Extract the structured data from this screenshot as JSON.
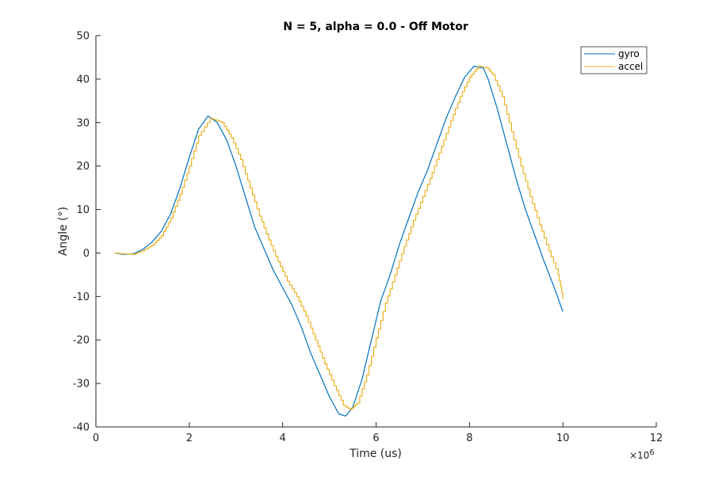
{
  "chart_data": {
    "type": "line",
    "title": "N = 5, alpha = 0.0 - Off Motor",
    "xlabel": "Time (us)",
    "ylabel": "Angle (°)",
    "x_exponent_label": "×10",
    "x_exponent_power": "6",
    "xlim": [
      0,
      12
    ],
    "ylim": [
      -40,
      50
    ],
    "x_unit_multiplier": 1000000,
    "xticks": [
      0,
      2,
      4,
      6,
      8,
      10,
      12
    ],
    "yticks": [
      -40,
      -30,
      -20,
      -10,
      0,
      10,
      20,
      30,
      40,
      50
    ],
    "xtick_labels": [
      "0",
      "2",
      "4",
      "6",
      "8",
      "10",
      "12"
    ],
    "ytick_labels": [
      "-40",
      "-30",
      "-20",
      "-10",
      "0",
      "10",
      "20",
      "30",
      "40",
      "50"
    ],
    "grid": false,
    "legend_position": "top-right",
    "series": [
      {
        "name": "gyro",
        "color": "#0072BD",
        "x": [
          0.4,
          0.6,
          0.8,
          1.0,
          1.2,
          1.4,
          1.6,
          1.8,
          2.0,
          2.2,
          2.4,
          2.6,
          2.8,
          3.0,
          3.2,
          3.4,
          3.6,
          3.8,
          4.0,
          4.2,
          4.4,
          4.6,
          4.8,
          5.0,
          5.2,
          5.35,
          5.5,
          5.7,
          5.9,
          6.1,
          6.3,
          6.5,
          6.7,
          6.9,
          7.1,
          7.3,
          7.5,
          7.7,
          7.9,
          8.1,
          8.3,
          8.4,
          8.6,
          8.8,
          9.0,
          9.2,
          9.4,
          9.6,
          9.8,
          10.0
        ],
        "y": [
          0.0,
          -0.3,
          -0.2,
          0.8,
          2.5,
          5.0,
          9.0,
          15.0,
          22.0,
          28.5,
          31.5,
          30.0,
          26.0,
          20.0,
          13.0,
          6.0,
          1.0,
          -4.0,
          -8.0,
          -12.0,
          -17.0,
          -23.0,
          -28.0,
          -33.0,
          -37.0,
          -37.5,
          -35.5,
          -29.0,
          -20.0,
          -11.0,
          -5.0,
          2.0,
          8.0,
          14.0,
          19.0,
          25.0,
          31.0,
          36.0,
          40.5,
          43.0,
          42.5,
          40.0,
          33.0,
          25.0,
          17.0,
          10.0,
          4.0,
          -2.0,
          -7.5,
          -13.5
        ]
      },
      {
        "name": "accel",
        "color": "#EDB120",
        "x": [
          0.4,
          0.6,
          0.8,
          1.0,
          1.2,
          1.4,
          1.6,
          1.8,
          2.0,
          2.2,
          2.45,
          2.7,
          2.9,
          3.1,
          3.3,
          3.5,
          3.7,
          3.9,
          4.1,
          4.3,
          4.5,
          4.7,
          4.9,
          5.1,
          5.3,
          5.45,
          5.6,
          5.8,
          6.0,
          6.2,
          6.4,
          6.6,
          6.8,
          7.0,
          7.2,
          7.4,
          7.6,
          7.8,
          8.0,
          8.2,
          8.4,
          8.5,
          8.7,
          8.9,
          9.1,
          9.3,
          9.5,
          9.7,
          9.9,
          10.0
        ],
        "y": [
          0.0,
          -0.2,
          -0.3,
          0.5,
          1.8,
          4.0,
          8.0,
          13.5,
          20.0,
          27.0,
          31.0,
          30.0,
          26.5,
          21.5,
          15.0,
          8.5,
          3.0,
          -2.0,
          -6.5,
          -10.0,
          -14.5,
          -20.0,
          -25.5,
          -30.5,
          -35.0,
          -36.0,
          -34.5,
          -28.0,
          -19.5,
          -11.5,
          -5.0,
          1.5,
          7.5,
          13.0,
          18.5,
          24.5,
          30.5,
          36.0,
          40.5,
          43.0,
          42.5,
          41.0,
          36.0,
          28.0,
          20.0,
          13.0,
          6.5,
          0.5,
          -5.0,
          -10.5
        ]
      }
    ]
  }
}
